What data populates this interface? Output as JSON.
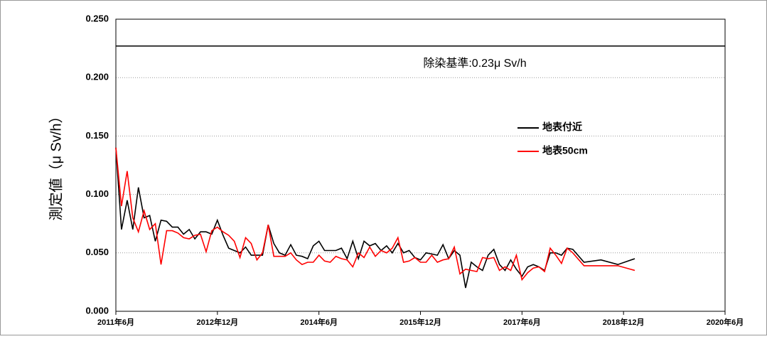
{
  "chart_data": {
    "type": "line",
    "y_label": "測定値（μ Sv/h）",
    "x": [
      "2011-06",
      "2011-07",
      "2011-08",
      "2011-09",
      "2011-10",
      "2011-11",
      "2011-12",
      "2012-01",
      "2012-02",
      "2012-03",
      "2012-04",
      "2012-05",
      "2012-06",
      "2012-07",
      "2012-08",
      "2012-09",
      "2012-10",
      "2012-11",
      "2012-12",
      "2013-01",
      "2013-02",
      "2013-03",
      "2013-04",
      "2013-05",
      "2013-06",
      "2013-07",
      "2013-08",
      "2013-09",
      "2013-10",
      "2013-11",
      "2013-12",
      "2014-01",
      "2014-02",
      "2014-03",
      "2014-04",
      "2014-05",
      "2014-06",
      "2014-07",
      "2014-08",
      "2014-09",
      "2014-10",
      "2014-11",
      "2014-12",
      "2015-01",
      "2015-02",
      "2015-03",
      "2015-04",
      "2015-05",
      "2015-06",
      "2015-07",
      "2015-08",
      "2015-09",
      "2015-10",
      "2015-11",
      "2015-12",
      "2016-01",
      "2016-02",
      "2016-03",
      "2016-04",
      "2016-05",
      "2016-06",
      "2016-07",
      "2016-08",
      "2016-09",
      "2016-10",
      "2016-11",
      "2016-12",
      "2017-01",
      "2017-02",
      "2017-03",
      "2017-04",
      "2017-05",
      "2017-06",
      "2017-07",
      "2017-08",
      "2017-09",
      "2017-10",
      "2017-11",
      "2017-12",
      "2018-01",
      "2018-02",
      "2018-03",
      "2018-05",
      "2018-08",
      "2018-11",
      "2019-02"
    ],
    "series": [
      {
        "name": "地表付近",
        "color": "#000000",
        "values": [
          0.14,
          0.07,
          0.095,
          0.07,
          0.106,
          0.08,
          0.082,
          0.06,
          0.078,
          0.077,
          0.072,
          0.072,
          0.066,
          0.07,
          0.062,
          0.068,
          0.068,
          0.066,
          0.078,
          0.065,
          0.054,
          0.052,
          0.05,
          0.055,
          0.048,
          0.048,
          0.048,
          0.074,
          0.058,
          0.05,
          0.048,
          0.057,
          0.048,
          0.047,
          0.045,
          0.056,
          0.06,
          0.052,
          0.052,
          0.052,
          0.054,
          0.045,
          0.06,
          0.045,
          0.06,
          0.056,
          0.058,
          0.052,
          0.056,
          0.05,
          0.058,
          0.05,
          0.052,
          0.046,
          0.044,
          0.05,
          0.049,
          0.048,
          0.057,
          0.045,
          0.052,
          0.048,
          0.02,
          0.042,
          0.038,
          0.035,
          0.048,
          0.053,
          0.04,
          0.035,
          0.044,
          0.036,
          0.03,
          0.038,
          0.04,
          0.038,
          0.035,
          0.05,
          0.05,
          0.048,
          0.054,
          0.053,
          0.042,
          0.044,
          0.04,
          0.045
        ]
      },
      {
        "name": "地表50cm",
        "color": "#ff0000",
        "values": [
          0.14,
          0.09,
          0.12,
          0.08,
          0.068,
          0.086,
          0.07,
          0.075,
          0.04,
          0.069,
          0.069,
          0.067,
          0.063,
          0.062,
          0.065,
          0.066,
          0.051,
          0.069,
          0.072,
          0.068,
          0.065,
          0.06,
          0.046,
          0.063,
          0.058,
          0.044,
          0.05,
          0.074,
          0.047,
          0.047,
          0.047,
          0.05,
          0.044,
          0.04,
          0.042,
          0.042,
          0.048,
          0.043,
          0.042,
          0.047,
          0.045,
          0.044,
          0.038,
          0.05,
          0.046,
          0.055,
          0.047,
          0.052,
          0.05,
          0.054,
          0.063,
          0.042,
          0.043,
          0.046,
          0.042,
          0.042,
          0.048,
          0.042,
          0.044,
          0.045,
          0.055,
          0.032,
          0.036,
          0.035,
          0.034,
          0.046,
          0.045,
          0.046,
          0.035,
          0.038,
          0.035,
          0.048,
          0.027,
          0.033,
          0.037,
          0.038,
          0.034,
          0.054,
          0.048,
          0.041,
          0.054,
          0.05,
          0.039,
          0.039,
          0.039,
          0.035
        ]
      }
    ],
    "xlim": [
      "2011-06",
      "2020-06"
    ],
    "xticks": [
      {
        "value": "2011-06",
        "label": "2011年6月"
      },
      {
        "value": "2012-12",
        "label": "2012年12月"
      },
      {
        "value": "2014-06",
        "label": "2014年6月"
      },
      {
        "value": "2015-12",
        "label": "2015年12月"
      },
      {
        "value": "2017-06",
        "label": "2017年6月"
      },
      {
        "value": "2018-12",
        "label": "2018年12月"
      },
      {
        "value": "2020-06",
        "label": "2020年6月"
      }
    ],
    "ylim": [
      0,
      0.25
    ],
    "yticks": [
      {
        "value": 0,
        "label": "0.000"
      },
      {
        "value": 0.05,
        "label": "0.050"
      },
      {
        "value": 0.1,
        "label": "0.100"
      },
      {
        "value": 0.15,
        "label": "0.150"
      },
      {
        "value": 0.2,
        "label": "0.200"
      },
      {
        "value": 0.25,
        "label": "0.250"
      }
    ],
    "grid": true,
    "reference_line": {
      "value": 0.227,
      "label": "除染基準:0.23μ Sv/h"
    },
    "legend": "upper right"
  }
}
